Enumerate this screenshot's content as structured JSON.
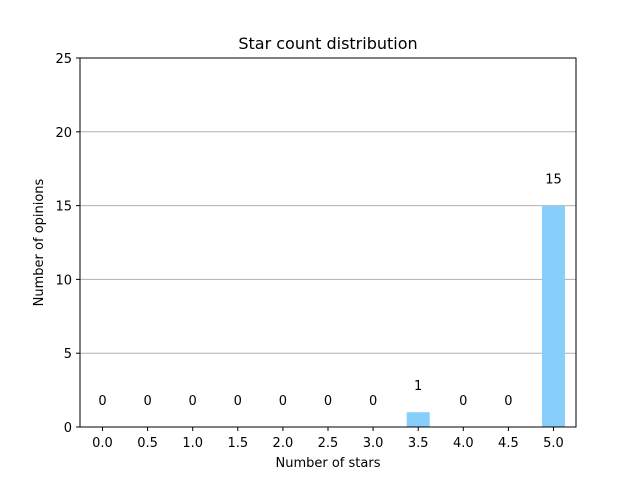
{
  "chart_data": {
    "type": "bar",
    "title": "Star count distribution",
    "xlabel": "Number of stars",
    "ylabel": "Number of opinions",
    "categories": [
      "0.0",
      "0.5",
      "1.0",
      "1.5",
      "2.0",
      "2.5",
      "3.0",
      "3.5",
      "4.0",
      "4.5",
      "5.0"
    ],
    "values": [
      0,
      0,
      0,
      0,
      0,
      0,
      0,
      1,
      0,
      0,
      15
    ],
    "data_labels": [
      "0",
      "0",
      "0",
      "0",
      "0",
      "0",
      "0",
      "1",
      "0",
      "0",
      "15"
    ],
    "ylim": [
      0,
      25
    ],
    "yticks": [
      "0",
      "5",
      "10",
      "15",
      "20",
      "25"
    ],
    "grid": "horizontal",
    "bar_color": "#87cefa",
    "grid_color": "#b0b0b0"
  }
}
